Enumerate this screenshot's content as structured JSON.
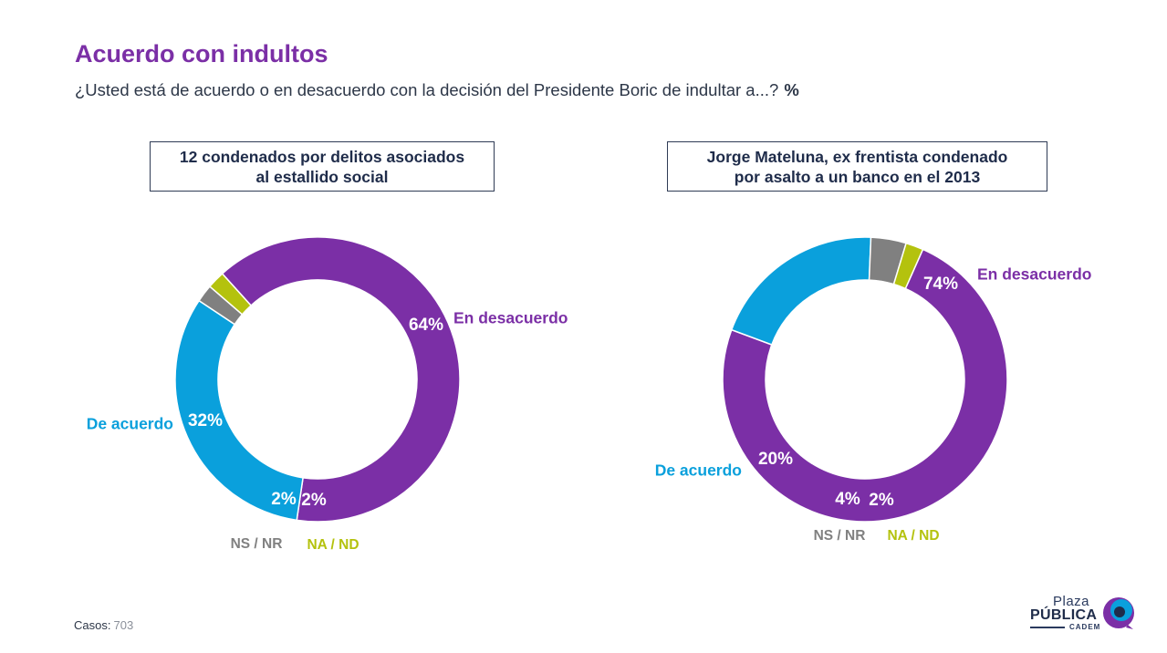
{
  "title": "Acuerdo con indultos",
  "subtitle": "¿Usted está de acuerdo o en desacuerdo con la decisión del Presidente Boric de indultar a...?",
  "unit_label": "%",
  "colors": {
    "title": "#7b2fa6",
    "en_desacuerdo": "#7b2fa6",
    "de_acuerdo": "#0aa0dc",
    "ns_nr": "#808080",
    "na_nd": "#b4c20e"
  },
  "footer": {
    "casos_label": "Casos",
    "casos_value": "703"
  },
  "logo": {
    "line1": "Plaza",
    "line2": "PÚBLICA",
    "line3": "CADEM",
    "icon": "cadem-swirl-icon"
  },
  "chart_data": [
    {
      "type": "pie",
      "donut": true,
      "title_lines": [
        "12 condenados por delitos asociados",
        "al estallido social"
      ],
      "categories": [
        "En desacuerdo",
        "De acuerdo",
        "NS / NR",
        "NA / ND"
      ],
      "values": [
        64,
        32,
        2,
        2
      ],
      "value_labels": [
        "64%",
        "32%",
        "2%",
        "2%"
      ]
    },
    {
      "type": "pie",
      "donut": true,
      "title_lines": [
        "Jorge Mateluna, ex frentista condenado",
        "por asalto a un banco en el 2013"
      ],
      "categories": [
        "En desacuerdo",
        "De acuerdo",
        "NS / NR",
        "NA / ND"
      ],
      "values": [
        74,
        20,
        4,
        2
      ],
      "value_labels": [
        "74%",
        "20%",
        "4%",
        "2%"
      ]
    }
  ]
}
